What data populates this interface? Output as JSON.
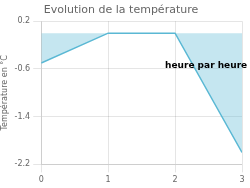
{
  "chart_data": {
    "type": "area",
    "title": "Evolution de la température",
    "ylabel": "Température en °C",
    "annotation": {
      "x": 1.85,
      "y": -0.55,
      "text": "heure par heure"
    },
    "x": [
      0,
      1,
      2,
      3
    ],
    "values": [
      -0.5,
      0.0,
      0.0,
      -2.0
    ],
    "color": "#5ab8d4",
    "xlim": [
      0,
      3
    ],
    "ylim": [
      -2.2,
      0.2
    ],
    "xticks": [
      0,
      1,
      2,
      3
    ],
    "yticks": [
      -2.2,
      -1.4,
      -0.6,
      0.2
    ],
    "grid": true
  }
}
